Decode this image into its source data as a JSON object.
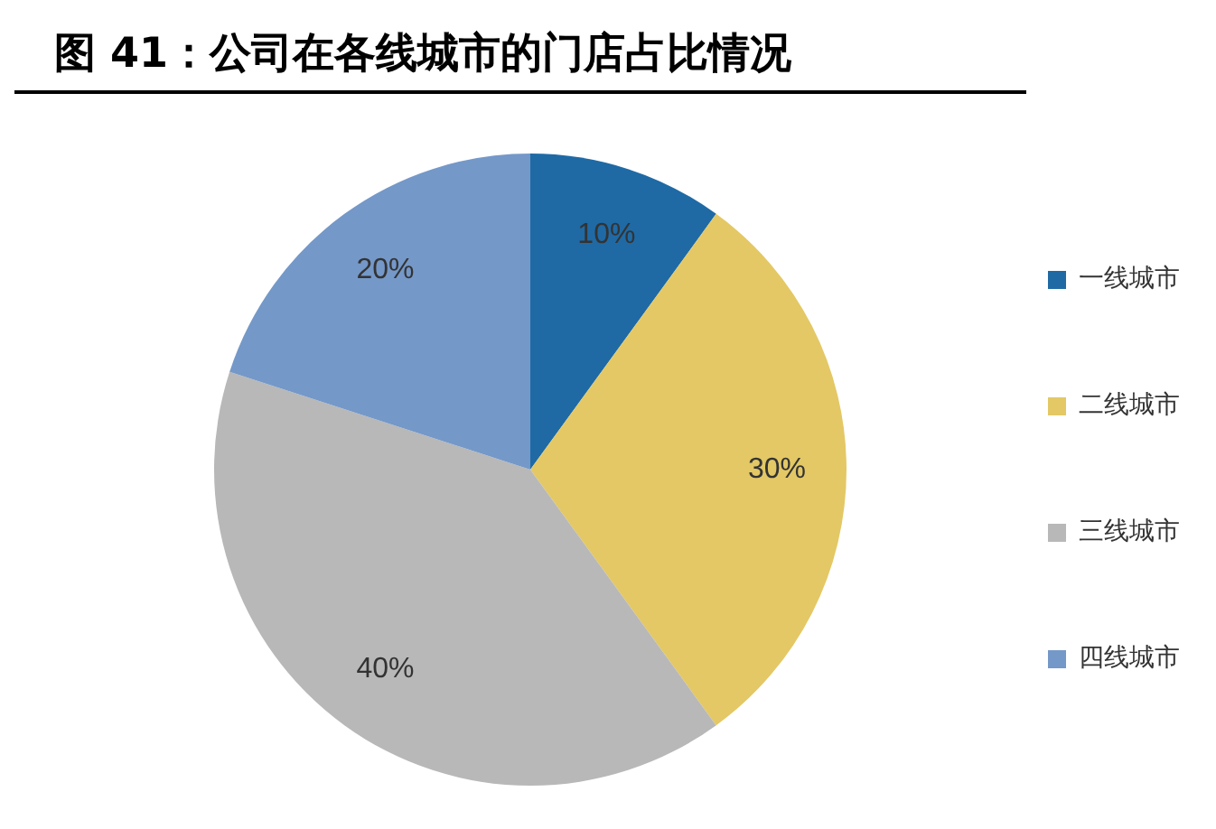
{
  "chart_data": {
    "type": "pie",
    "title": "图 41：公司在各线城市的门店占比情况",
    "categories": [
      "一线城市",
      "二线城市",
      "三线城市",
      "四线城市"
    ],
    "values": [
      10,
      30,
      40,
      20
    ],
    "colors": [
      "#1f6aa5",
      "#e3c865",
      "#b8b8b8",
      "#7498c8"
    ],
    "value_labels": [
      "10%",
      "30%",
      "40%",
      "20%"
    ],
    "legend": "right"
  }
}
